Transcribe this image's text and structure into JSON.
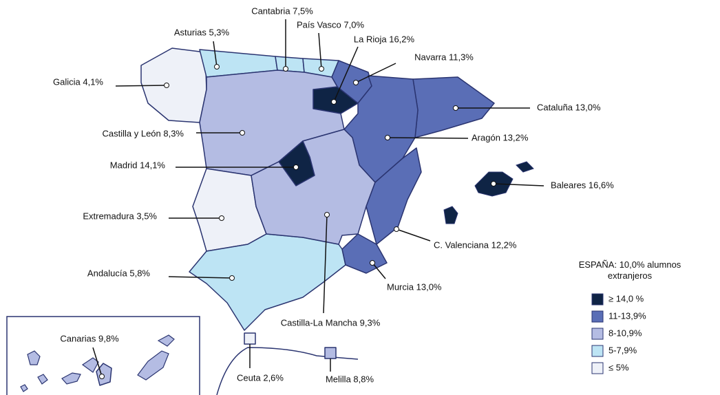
{
  "legend": {
    "title": "ESPAÑA: 10,0% alumnos extranjeros",
    "items": [
      {
        "label": "≥ 14,0 %",
        "color": "#0f2445"
      },
      {
        "label": "11-13,9%",
        "color": "#5a6eb6"
      },
      {
        "label": "8-10,9%",
        "color": "#b4bce3"
      },
      {
        "label": "5-7,9%",
        "color": "#bde4f4"
      },
      {
        "label": "≤ 5%",
        "color": "#eef1f8"
      }
    ]
  },
  "regions": [
    {
      "label": "Galicia 4,1%",
      "color": "#eef1f8"
    },
    {
      "label": "Asturias 5,3%",
      "color": "#bde4f4"
    },
    {
      "label": "Cantabria 7,5%",
      "color": "#bde4f4"
    },
    {
      "label": "País Vasco 7,0%",
      "color": "#bde4f4"
    },
    {
      "label": "La Rioja 16,2%",
      "color": "#0f2445"
    },
    {
      "label": "Navarra 11,3%",
      "color": "#5a6eb6"
    },
    {
      "label": "Cataluña 13,0%",
      "color": "#5a6eb6"
    },
    {
      "label": "Aragón 13,2%",
      "color": "#5a6eb6"
    },
    {
      "label": "Castilla y León 8,3%",
      "color": "#b4bce3"
    },
    {
      "label": "Madrid 14,1%",
      "color": "#0f2445"
    },
    {
      "label": "Extremadura 3,5%",
      "color": "#eef1f8"
    },
    {
      "label": "Andalucía 5,8%",
      "color": "#bde4f4"
    },
    {
      "label": "Castilla-La Mancha  9,3%",
      "color": "#b4bce3"
    },
    {
      "label": "C. Valenciana 12,2%",
      "color": "#5a6eb6"
    },
    {
      "label": "Murcia 13,0%",
      "color": "#5a6eb6"
    },
    {
      "label": "Baleares 16,6%",
      "color": "#0f2445"
    },
    {
      "label": "Canarias 9,8%",
      "color": "#b4bce3"
    },
    {
      "label": "Ceuta 2,6%",
      "color": "#eef1f8"
    },
    {
      "label": "Melilla 8,8%",
      "color": "#b4bce3"
    }
  ]
}
